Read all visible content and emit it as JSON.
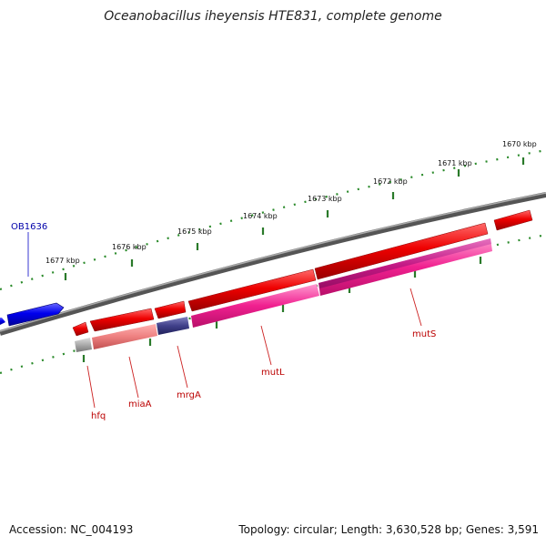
{
  "title": "Oceanobacillus iheyensis HTE831, complete genome",
  "footer": {
    "accession": "Accession: NC_004193",
    "summary": "Topology: circular; Length: 3,630,528 bp; Genes: 3,591"
  },
  "ticks": [
    "1670 kbp",
    "1671 kbp",
    "1672 kbp",
    "1673 kbp",
    "1674 kbp",
    "1675 kbp",
    "1676 kbp",
    "1677 kbp"
  ],
  "genes": [
    {
      "name": "OB1636",
      "color": "#0000aa"
    },
    {
      "name": "hfq",
      "color": "#bb0000"
    },
    {
      "name": "miaA",
      "color": "#bb0000"
    },
    {
      "name": "mrgA",
      "color": "#bb0000"
    },
    {
      "name": "mutL",
      "color": "#bb0000"
    },
    {
      "name": "mutS",
      "color": "#bb0000"
    }
  ]
}
